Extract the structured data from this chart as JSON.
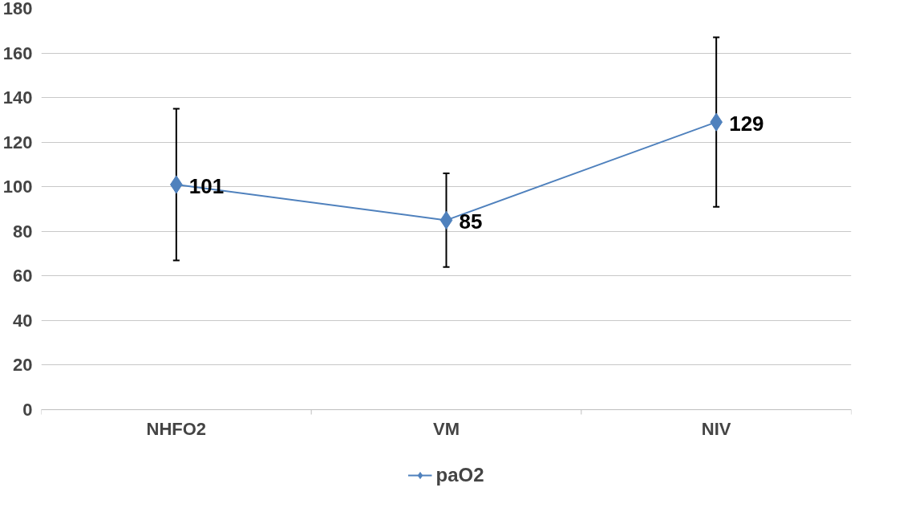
{
  "chart_data": {
    "type": "line",
    "categories": [
      "NHFO2",
      "VM",
      "NIV"
    ],
    "series": [
      {
        "name": "paO2",
        "color": "#4f81bd",
        "values": [
          101,
          85,
          129
        ],
        "errors": [
          [
            67,
            135
          ],
          [
            64,
            106
          ],
          [
            91,
            167
          ]
        ]
      }
    ],
    "ylim": [
      0,
      180
    ],
    "yticks": [
      0,
      20,
      40,
      60,
      80,
      100,
      120,
      140,
      160,
      180
    ],
    "grid": "y",
    "legend": "bottom",
    "marker": "diamond",
    "line_style": "solid",
    "data_labels": true
  }
}
